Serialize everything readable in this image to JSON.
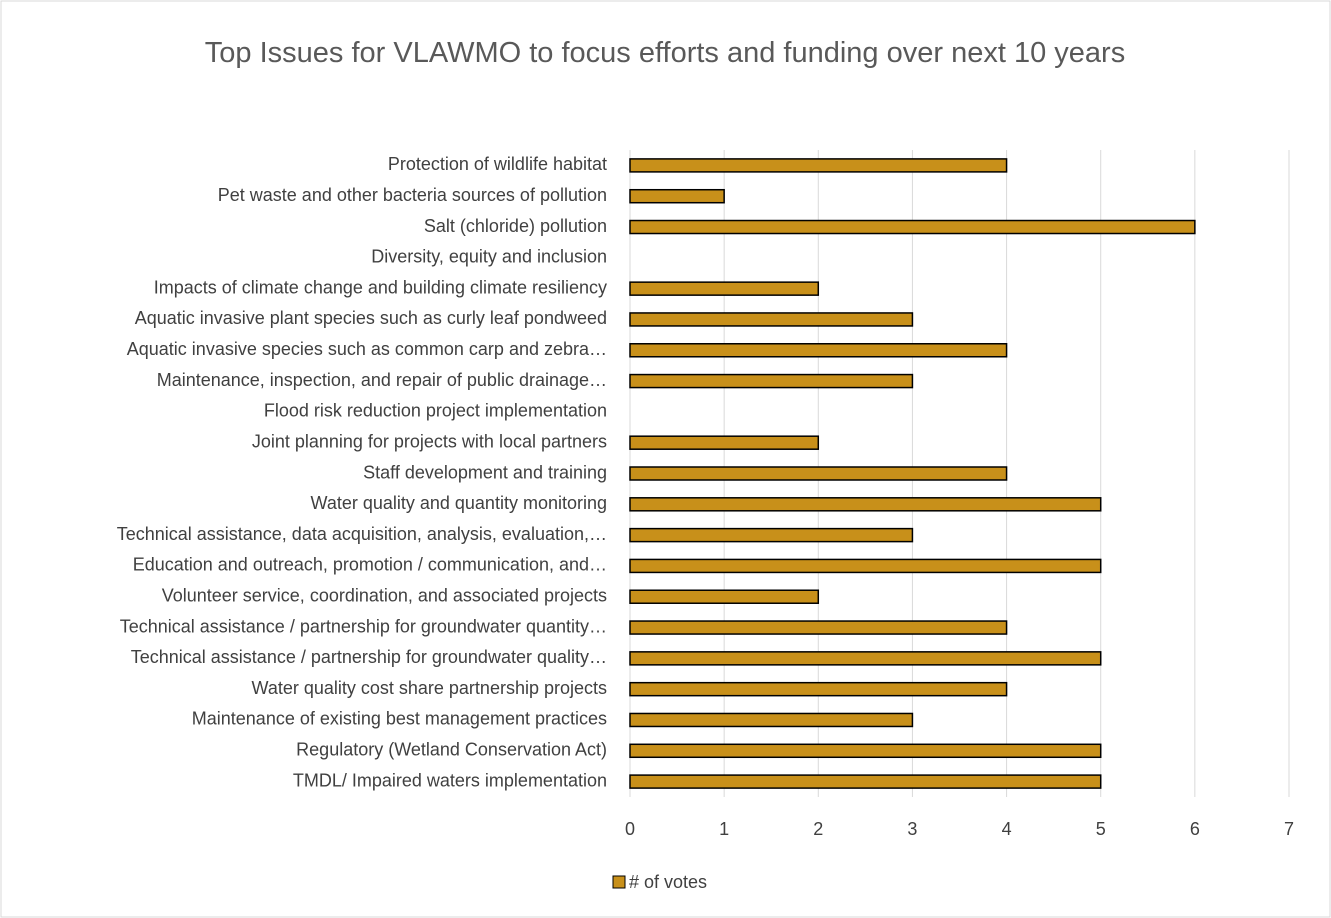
{
  "chart_data": {
    "type": "bar",
    "orientation": "horizontal",
    "title": "Top Issues for VLAWMO to focus efforts and funding over next 10 years",
    "categories": [
      "Protection of wildlife habitat",
      "Pet waste and other bacteria sources of pollution",
      "Salt (chloride) pollution",
      "Diversity, equity and inclusion",
      "Impacts of climate change and building climate resiliency",
      "Aquatic invasive plant species such as curly leaf pondweed",
      "Aquatic invasive species such as common carp and zebra…",
      "Maintenance, inspection, and repair of public drainage…",
      "Flood risk reduction project implementation",
      "Joint planning for projects with local partners",
      "Staff development and training",
      "Water quality and quantity monitoring",
      "Technical assistance, data acquisition, analysis, evaluation,…",
      "Education and outreach, promotion / communication, and…",
      "Volunteer service, coordination, and associated projects",
      "Technical assistance / partnership for groundwater quantity…",
      "Technical assistance / partnership for groundwater quality…",
      "Water quality cost share partnership projects",
      "Maintenance of existing best management practices",
      "Regulatory (Wetland Conservation Act)",
      "TMDL/ Impaired waters implementation"
    ],
    "series": [
      {
        "name": "# of votes",
        "color": "#c8901a",
        "values": [
          4,
          1,
          6,
          0,
          2,
          3,
          4,
          3,
          0,
          2,
          4,
          5,
          3,
          5,
          2,
          4,
          5,
          4,
          3,
          5,
          5
        ]
      }
    ],
    "xlim": [
      0,
      7
    ],
    "xticks": [
      0,
      1,
      2,
      3,
      4,
      5,
      6,
      7
    ],
    "grid": true,
    "legend": "bottom"
  }
}
